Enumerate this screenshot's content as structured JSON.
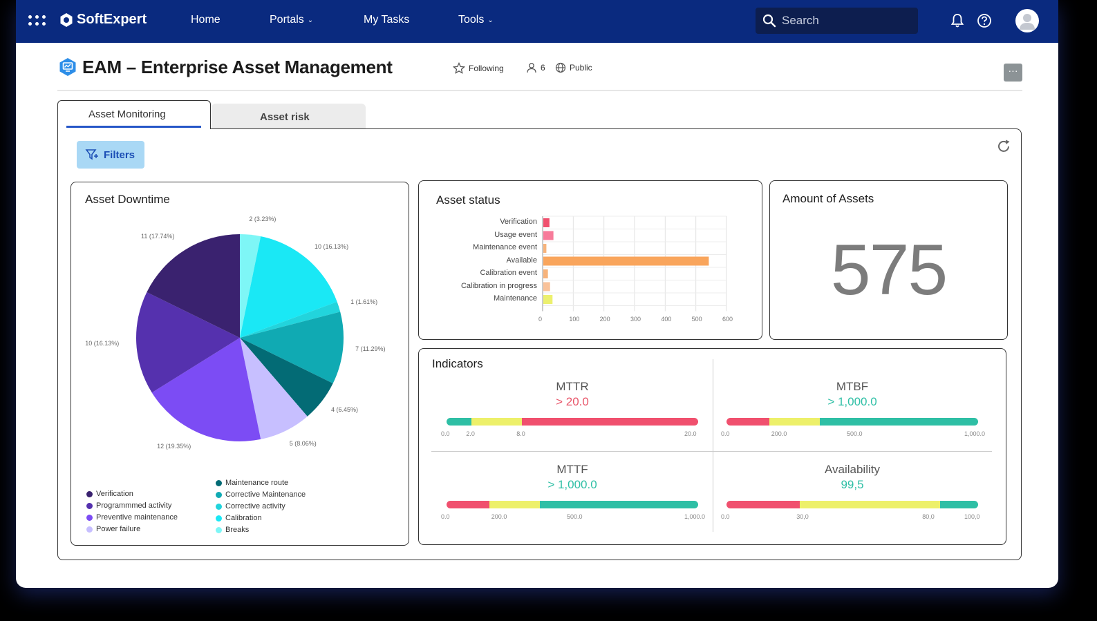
{
  "topbar": {
    "brand": "SoftExpert",
    "nav": [
      {
        "label": "Home",
        "has_dropdown": false
      },
      {
        "label": "Portals",
        "has_dropdown": true
      },
      {
        "label": "My Tasks",
        "has_dropdown": false
      },
      {
        "label": "Tools",
        "has_dropdown": true
      }
    ],
    "search_placeholder": "Search",
    "icons": [
      "apps-grid-icon",
      "bell-icon",
      "help-icon",
      "avatar-icon"
    ]
  },
  "page": {
    "title": "EAM – Enterprise Asset Management",
    "following_label": "Following",
    "members_count": "6",
    "visibility_label": "Public",
    "more_label": "···"
  },
  "tabs": [
    {
      "label": "Asset Monitoring",
      "active": true
    },
    {
      "label": "Asset risk",
      "active": false
    }
  ],
  "toolbar": {
    "filters_label": "Filters"
  },
  "downtime": {
    "title": "Asset Downtime"
  },
  "status": {
    "title": "Asset status"
  },
  "amount": {
    "title": "Amount of Assets",
    "value": "575"
  },
  "indicators": {
    "title": "Indicators",
    "items": [
      {
        "name": "MTTR",
        "value": "> 20.0",
        "value_color": "#e8566a",
        "ticks": [
          "0.0",
          "2.0",
          "8.0",
          "20.0"
        ]
      },
      {
        "name": "MTBF",
        "value": "> 1,000.0",
        "value_color": "#2ebfa5",
        "ticks": [
          "0.0",
          "200.0",
          "500.0",
          "1,000.0"
        ]
      },
      {
        "name": "MTTF",
        "value": "> 1,000.0",
        "value_color": "#2ebfa5",
        "ticks": [
          "0.0",
          "200.0",
          "500.0",
          "1,000.0"
        ]
      },
      {
        "name": "Availability",
        "value": "99,5",
        "value_color": "#2ebfa5",
        "ticks": [
          "0.0",
          "30,0",
          "80,0",
          "100,0"
        ]
      }
    ]
  },
  "chart_data": [
    {
      "type": "pie",
      "title": "Asset Downtime",
      "slices": [
        {
          "name": "Breaks",
          "value": 2,
          "label": "2 (3.23%)",
          "color": "#7ef6f6"
        },
        {
          "name": "Calibration",
          "value": 10,
          "label": "10 (16.13%)",
          "color": "#1ae8f5"
        },
        {
          "name": "Corrective activity",
          "value": 1,
          "label": "1 (1.61%)",
          "color": "#22d4dc"
        },
        {
          "name": "Corrective Maintenance",
          "value": 7,
          "label": "7 (11.29%)",
          "color": "#10aab3"
        },
        {
          "name": "Maintenance route",
          "value": 4,
          "label": "4 (6.45%)",
          "color": "#036b75"
        },
        {
          "name": "Power failure",
          "value": 5,
          "label": "5 (8.06%)",
          "color": "#c7bfff"
        },
        {
          "name": "Preventive maintenance",
          "value": 12,
          "label": "12 (19.35%)",
          "color": "#7c4cf4"
        },
        {
          "name": "Programmmed activity",
          "value": 10,
          "label": "10 (16.13%)",
          "color": "#5531ae"
        },
        {
          "name": "Verification",
          "value": 11,
          "label": "11 (17.74%)",
          "color": "#3a226f"
        }
      ],
      "legend_left": [
        "Verification",
        "Programmmed activity",
        "Preventive maintenance",
        "Power failure"
      ],
      "legend_right": [
        "Maintenance route",
        "Corrective Maintenance",
        "Corrective activity",
        "Calibration",
        "Breaks"
      ]
    },
    {
      "type": "bar",
      "orientation": "horizontal",
      "title": "Asset status",
      "categories": [
        "Verification",
        "Usage event",
        "Maintenance event",
        "Available",
        "Calibration event",
        "Calibration in progress",
        "Maintenance"
      ],
      "values": [
        20,
        33,
        10,
        540,
        15,
        22,
        30
      ],
      "colors": [
        "#f0506e",
        "#f77b9a",
        "#f7b37b",
        "#f9a55c",
        "#f7b37b",
        "#f9c29a",
        "#ecf06e"
      ],
      "xlim": [
        0,
        600
      ],
      "x_ticks": [
        "0",
        "100",
        "200",
        "300",
        "400",
        "500",
        "600"
      ],
      "grid": true
    }
  ]
}
